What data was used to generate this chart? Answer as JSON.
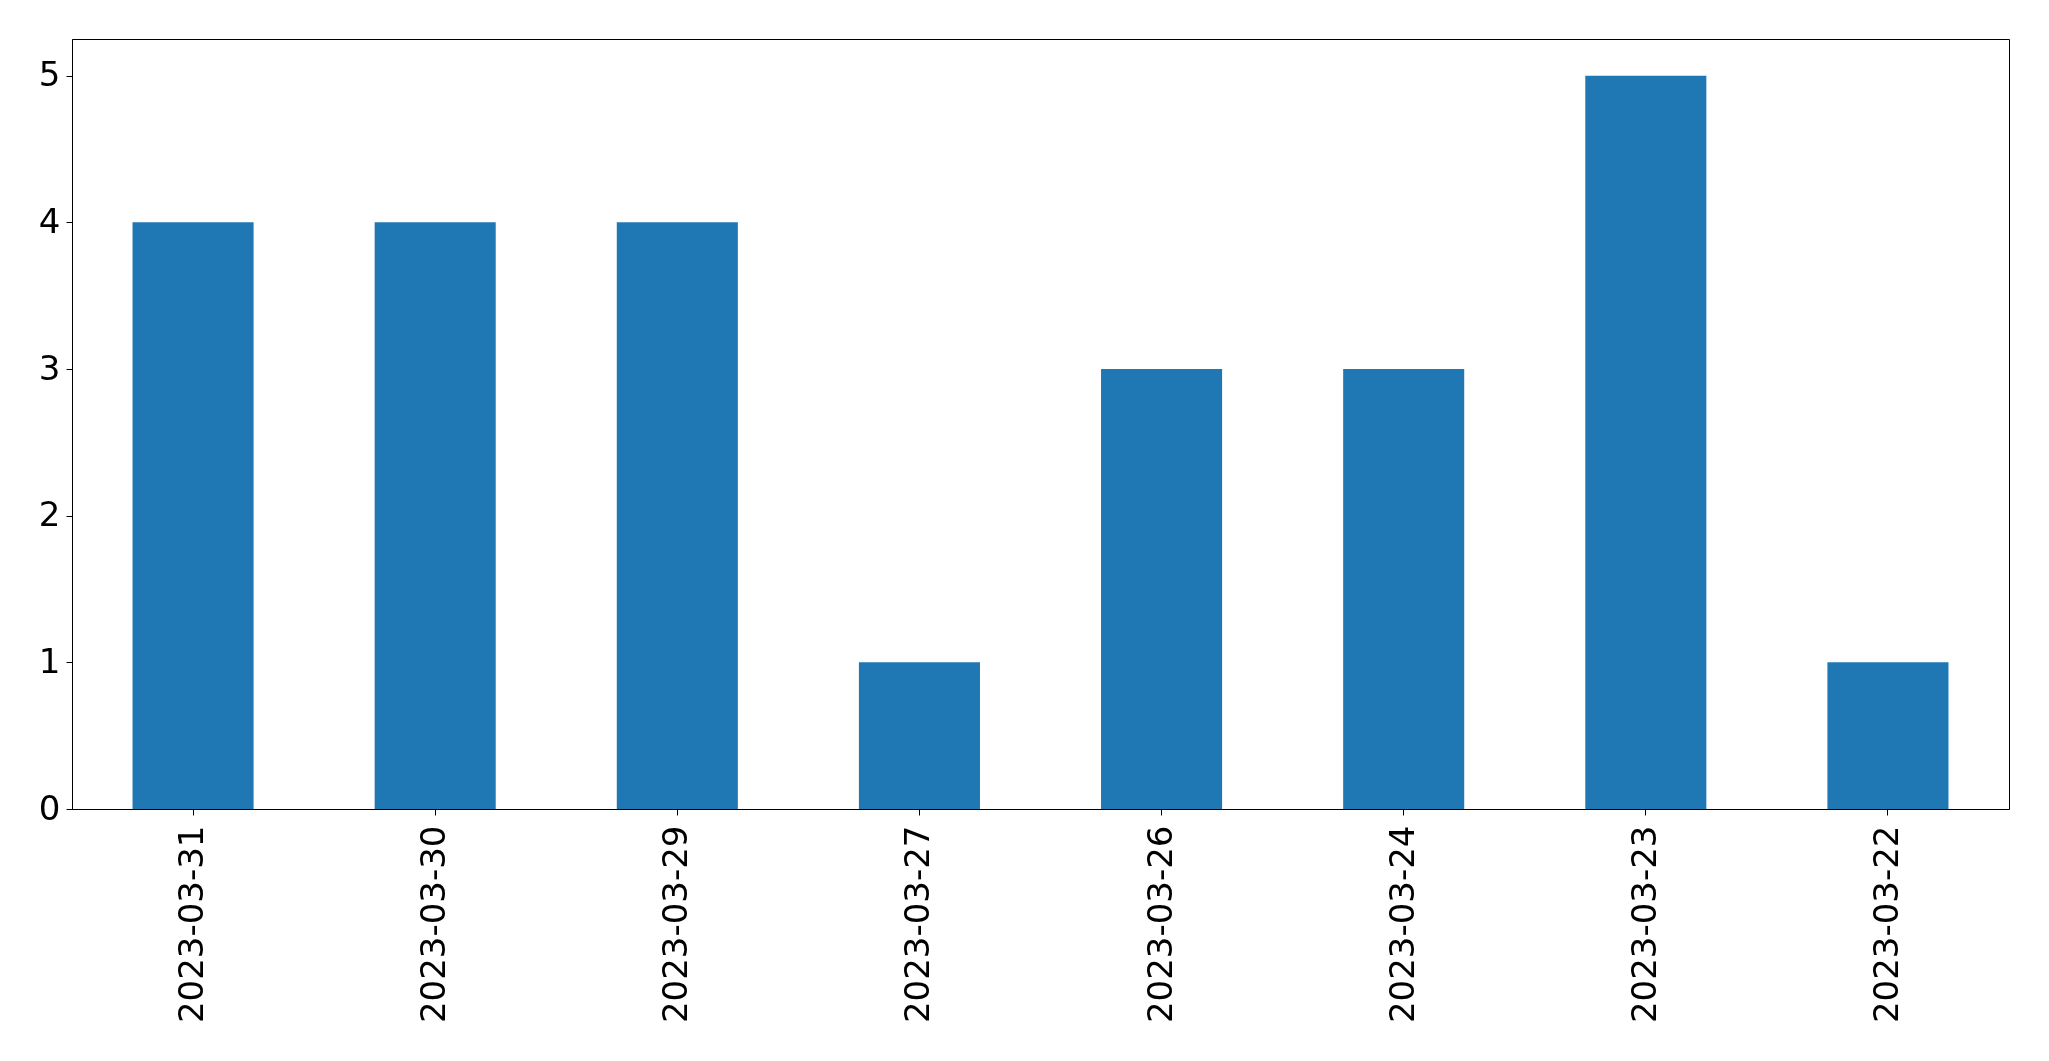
{
  "chart_data": {
    "type": "bar",
    "categories": [
      "2023-03-31",
      "2023-03-30",
      "2023-03-29",
      "2023-03-27",
      "2023-03-26",
      "2023-03-24",
      "2023-03-23",
      "2023-03-22"
    ],
    "values": [
      4,
      4,
      4,
      1,
      3,
      3,
      5,
      1
    ],
    "color": "#1f77b4",
    "ylim": [
      0,
      5.25
    ],
    "yticks": [
      0,
      1,
      2,
      3,
      4,
      5
    ],
    "grid": false
  }
}
